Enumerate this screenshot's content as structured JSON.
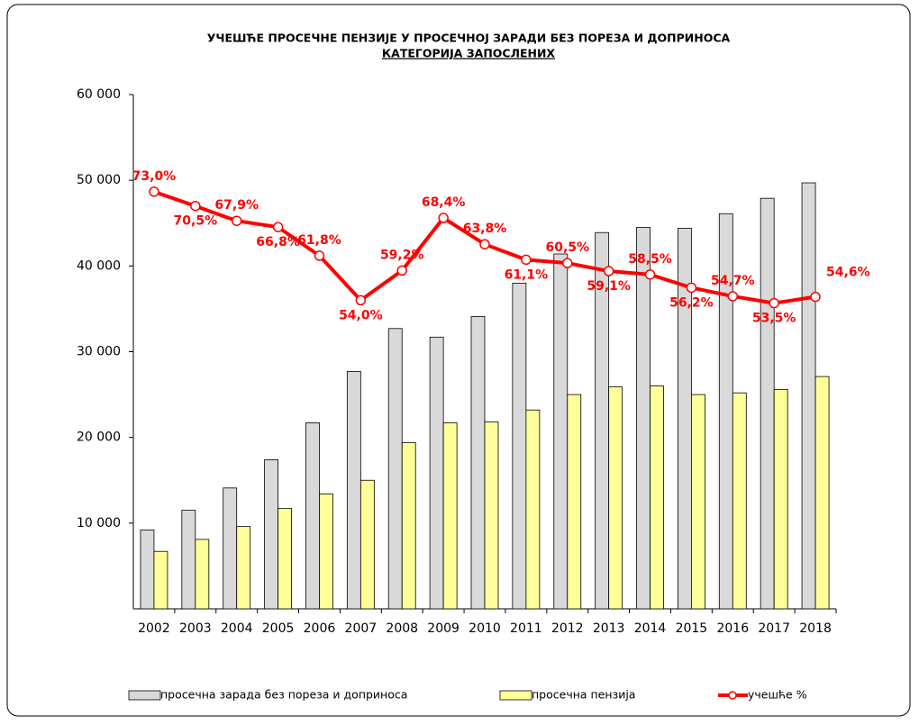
{
  "chart_data": {
    "type": "bar-line",
    "title": "УЧЕШЋЕ ПРОСЕЧНЕ ПЕНЗИЈЕ У ПРОСЕЧНОЈ ЗАРАДИ БЕЗ ПОРЕЗА И ДОПРИНОСА",
    "subtitle": "КАТЕГОРИЈА ЗАПОСЛЕНИХ",
    "categories": [
      "2002",
      "2003",
      "2004",
      "2005",
      "2006",
      "2007",
      "2008",
      "2009",
      "2010",
      "2011",
      "2012",
      "2013",
      "2014",
      "2015",
      "2016",
      "2017",
      "2018"
    ],
    "series": [
      {
        "name": "просечна зарада без пореза и доприноса",
        "type": "bar",
        "color": "#d9d9d9",
        "values": [
          9200,
          11500,
          14100,
          17400,
          21700,
          27700,
          32700,
          31700,
          34100,
          38000,
          41400,
          43900,
          44500,
          44400,
          46100,
          47900,
          49700
        ]
      },
      {
        "name": "просечна пензија",
        "type": "bar",
        "color": "#ffff99",
        "values": [
          6700,
          8100,
          9600,
          11700,
          13400,
          15000,
          19400,
          21700,
          21800,
          23200,
          25000,
          25900,
          26000,
          25000,
          25200,
          25600,
          27100
        ]
      },
      {
        "name": "учешће %",
        "type": "line",
        "axis": "y2",
        "color": "#ff0000",
        "values": [
          73.0,
          70.5,
          67.9,
          66.8,
          61.8,
          54.0,
          59.2,
          68.4,
          63.8,
          61.1,
          60.5,
          59.1,
          58.5,
          56.2,
          54.7,
          53.5,
          54.6
        ],
        "value_labels": [
          "73,0%",
          "70,5%",
          "67,9%",
          "66,8%",
          "61,8%",
          "54,0%",
          "59,2%",
          "68,4%",
          "63,8%",
          "61,1%",
          "60,5%",
          "59,1%",
          "58,5%",
          "56,2%",
          "54,7%",
          "53,5%",
          "54,6%"
        ]
      }
    ],
    "ylim": [
      0,
      60000
    ],
    "yticks": [
      {
        "value": 10000,
        "label": "10 000"
      },
      {
        "value": 20000,
        "label": "20 000"
      },
      {
        "value": 30000,
        "label": "30 000"
      },
      {
        "value": 40000,
        "label": "40 000"
      },
      {
        "value": 50000,
        "label": "50 000"
      },
      {
        "value": 60000,
        "label": "60 000"
      }
    ],
    "y2lim": [
      0,
      90
    ]
  }
}
